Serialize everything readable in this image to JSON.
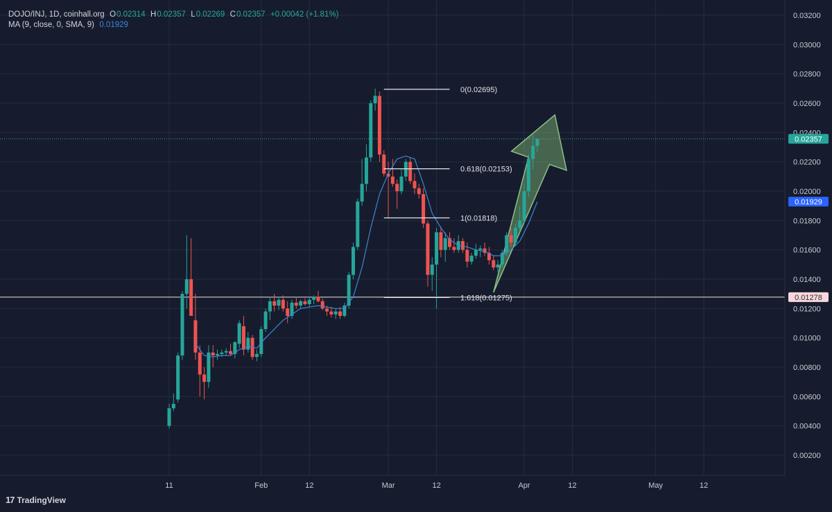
{
  "legend": {
    "symbol": "DOJO/INJ, 1D, coinhall.org",
    "o_label": "O",
    "o_value": "0.02314",
    "h_label": "H",
    "h_value": "0.02357",
    "l_label": "L",
    "l_value": "0.02269",
    "c_label": "C",
    "c_value": "0.02357",
    "change": "+0.00042 (+1.81%)",
    "ma_label": "MA (9, close, 0, SMA, 9)",
    "ma_value": "0.01929"
  },
  "branding": {
    "logo": "TradingView"
  },
  "chart_data": {
    "type": "candlestick",
    "y_ticks": [
      "0.03200",
      "0.03000",
      "0.02800",
      "0.02600",
      "0.02400",
      "0.02200",
      "0.02000",
      "0.01800",
      "0.01600",
      "0.01400",
      "0.01200",
      "0.01000",
      "0.00800",
      "0.00600",
      "0.00400",
      "0.00200"
    ],
    "x_ticks": [
      "11",
      "Feb",
      "12",
      "Mar",
      "12",
      "Apr",
      "12",
      "May",
      "12"
    ],
    "ylim": [
      0.0003,
      0.033
    ],
    "x_range": [
      "2024-01-01",
      "2024-05-31"
    ],
    "x_tick_dates": [
      "2024-01-11",
      "2024-02-01",
      "2024-02-12",
      "2024-03-01",
      "2024-03-12",
      "2024-04-01",
      "2024-04-12",
      "2024-05-01",
      "2024-05-12"
    ],
    "candles": [
      {
        "d": "2024-01-11",
        "o": 0.004,
        "h": 0.0055,
        "l": 0.0038,
        "c": 0.0052
      },
      {
        "d": "2024-01-12",
        "o": 0.0052,
        "h": 0.0062,
        "l": 0.005,
        "c": 0.0055
      },
      {
        "d": "2024-01-13",
        "o": 0.0058,
        "h": 0.009,
        "l": 0.0056,
        "c": 0.0088
      },
      {
        "d": "2024-01-14",
        "o": 0.0088,
        "h": 0.0132,
        "l": 0.0085,
        "c": 0.013
      },
      {
        "d": "2024-01-15",
        "o": 0.013,
        "h": 0.017,
        "l": 0.012,
        "c": 0.014
      },
      {
        "d": "2024-01-16",
        "o": 0.014,
        "h": 0.0168,
        "l": 0.0118,
        "c": 0.0115
      },
      {
        "d": "2024-01-17",
        "o": 0.0112,
        "h": 0.013,
        "l": 0.0085,
        "c": 0.009
      },
      {
        "d": "2024-01-18",
        "o": 0.009,
        "h": 0.0095,
        "l": 0.006,
        "c": 0.0075
      },
      {
        "d": "2024-01-19",
        "o": 0.0075,
        "h": 0.008,
        "l": 0.0058,
        "c": 0.007
      },
      {
        "d": "2024-01-20",
        "o": 0.007,
        "h": 0.0095,
        "l": 0.0066,
        "c": 0.009
      },
      {
        "d": "2024-01-21",
        "o": 0.009,
        "h": 0.0095,
        "l": 0.008,
        "c": 0.0088
      },
      {
        "d": "2024-01-22",
        "o": 0.0088,
        "h": 0.0092,
        "l": 0.0085,
        "c": 0.0089
      },
      {
        "d": "2024-01-23",
        "o": 0.0089,
        "h": 0.0092,
        "l": 0.0087,
        "c": 0.009
      },
      {
        "d": "2024-01-24",
        "o": 0.009,
        "h": 0.0093,
        "l": 0.0088,
        "c": 0.0091
      },
      {
        "d": "2024-01-25",
        "o": 0.0091,
        "h": 0.0096,
        "l": 0.0088,
        "c": 0.0089
      },
      {
        "d": "2024-01-26",
        "o": 0.0089,
        "h": 0.0098,
        "l": 0.0086,
        "c": 0.0097
      },
      {
        "d": "2024-01-27",
        "o": 0.0096,
        "h": 0.0112,
        "l": 0.0093,
        "c": 0.011
      },
      {
        "d": "2024-01-28",
        "o": 0.0108,
        "h": 0.0115,
        "l": 0.0088,
        "c": 0.0092
      },
      {
        "d": "2024-01-29",
        "o": 0.0092,
        "h": 0.0104,
        "l": 0.009,
        "c": 0.01
      },
      {
        "d": "2024-01-30",
        "o": 0.01,
        "h": 0.0102,
        "l": 0.0085,
        "c": 0.0087
      },
      {
        "d": "2024-01-31",
        "o": 0.0087,
        "h": 0.0092,
        "l": 0.0084,
        "c": 0.0089
      },
      {
        "d": "2024-02-01",
        "o": 0.0089,
        "h": 0.0108,
        "l": 0.0087,
        "c": 0.0106
      },
      {
        "d": "2024-02-02",
        "o": 0.0106,
        "h": 0.012,
        "l": 0.0104,
        "c": 0.0118
      },
      {
        "d": "2024-02-03",
        "o": 0.0118,
        "h": 0.0128,
        "l": 0.0112,
        "c": 0.0125
      },
      {
        "d": "2024-02-04",
        "o": 0.0125,
        "h": 0.013,
        "l": 0.0118,
        "c": 0.0122
      },
      {
        "d": "2024-02-05",
        "o": 0.0122,
        "h": 0.0128,
        "l": 0.0119,
        "c": 0.0126
      },
      {
        "d": "2024-02-06",
        "o": 0.0126,
        "h": 0.0129,
        "l": 0.0118,
        "c": 0.012
      },
      {
        "d": "2024-02-07",
        "o": 0.012,
        "h": 0.0125,
        "l": 0.011,
        "c": 0.0115
      },
      {
        "d": "2024-02-08",
        "o": 0.0115,
        "h": 0.0126,
        "l": 0.0113,
        "c": 0.0124
      },
      {
        "d": "2024-02-09",
        "o": 0.0124,
        "h": 0.0128,
        "l": 0.012,
        "c": 0.0122
      },
      {
        "d": "2024-02-10",
        "o": 0.0122,
        "h": 0.0126,
        "l": 0.012,
        "c": 0.0125
      },
      {
        "d": "2024-02-11",
        "o": 0.0125,
        "h": 0.0127,
        "l": 0.0122,
        "c": 0.0123
      },
      {
        "d": "2024-02-12",
        "o": 0.0123,
        "h": 0.0128,
        "l": 0.0121,
        "c": 0.0126
      },
      {
        "d": "2024-02-13",
        "o": 0.0126,
        "h": 0.0129,
        "l": 0.0123,
        "c": 0.0128
      },
      {
        "d": "2024-02-14",
        "o": 0.0128,
        "h": 0.0132,
        "l": 0.0124,
        "c": 0.0125
      },
      {
        "d": "2024-02-15",
        "o": 0.0125,
        "h": 0.0127,
        "l": 0.0119,
        "c": 0.012
      },
      {
        "d": "2024-02-16",
        "o": 0.012,
        "h": 0.0122,
        "l": 0.0115,
        "c": 0.0118
      },
      {
        "d": "2024-02-17",
        "o": 0.0118,
        "h": 0.0121,
        "l": 0.0114,
        "c": 0.0116
      },
      {
        "d": "2024-02-18",
        "o": 0.0116,
        "h": 0.012,
        "l": 0.0113,
        "c": 0.0118
      },
      {
        "d": "2024-02-19",
        "o": 0.0118,
        "h": 0.0121,
        "l": 0.0113,
        "c": 0.0115
      },
      {
        "d": "2024-02-20",
        "o": 0.0115,
        "h": 0.0124,
        "l": 0.0114,
        "c": 0.0122
      },
      {
        "d": "2024-02-21",
        "o": 0.0122,
        "h": 0.0145,
        "l": 0.012,
        "c": 0.0143
      },
      {
        "d": "2024-02-22",
        "o": 0.0143,
        "h": 0.0165,
        "l": 0.014,
        "c": 0.0162
      },
      {
        "d": "2024-02-23",
        "o": 0.0162,
        "h": 0.0195,
        "l": 0.016,
        "c": 0.0193
      },
      {
        "d": "2024-02-24",
        "o": 0.0193,
        "h": 0.0222,
        "l": 0.019,
        "c": 0.0205
      },
      {
        "d": "2024-02-25",
        "o": 0.0205,
        "h": 0.0232,
        "l": 0.02,
        "c": 0.0223
      },
      {
        "d": "2024-02-26",
        "o": 0.0223,
        "h": 0.0262,
        "l": 0.022,
        "c": 0.026
      },
      {
        "d": "2024-02-27",
        "o": 0.026,
        "h": 0.027,
        "l": 0.0255,
        "c": 0.0265
      },
      {
        "d": "2024-02-28",
        "o": 0.0265,
        "h": 0.0268,
        "l": 0.022,
        "c": 0.0225
      },
      {
        "d": "2024-02-29",
        "o": 0.0225,
        "h": 0.0228,
        "l": 0.021,
        "c": 0.0212
      },
      {
        "d": "2024-03-01",
        "o": 0.0212,
        "h": 0.022,
        "l": 0.0182,
        "c": 0.021
      },
      {
        "d": "2024-03-02",
        "o": 0.021,
        "h": 0.0222,
        "l": 0.0203,
        "c": 0.0205
      },
      {
        "d": "2024-03-03",
        "o": 0.0205,
        "h": 0.0208,
        "l": 0.0188,
        "c": 0.02
      },
      {
        "d": "2024-03-04",
        "o": 0.02,
        "h": 0.0215,
        "l": 0.0198,
        "c": 0.021
      },
      {
        "d": "2024-03-05",
        "o": 0.021,
        "h": 0.0222,
        "l": 0.0207,
        "c": 0.022
      },
      {
        "d": "2024-03-06",
        "o": 0.022,
        "h": 0.0223,
        "l": 0.0205,
        "c": 0.0207
      },
      {
        "d": "2024-03-07",
        "o": 0.0207,
        "h": 0.0212,
        "l": 0.0198,
        "c": 0.0202
      },
      {
        "d": "2024-03-08",
        "o": 0.0202,
        "h": 0.0205,
        "l": 0.0195,
        "c": 0.0198
      },
      {
        "d": "2024-03-09",
        "o": 0.0198,
        "h": 0.0202,
        "l": 0.0175,
        "c": 0.0178
      },
      {
        "d": "2024-03-10",
        "o": 0.0178,
        "h": 0.018,
        "l": 0.0135,
        "c": 0.0143
      },
      {
        "d": "2024-03-11",
        "o": 0.0143,
        "h": 0.0155,
        "l": 0.0132,
        "c": 0.015
      },
      {
        "d": "2024-03-12",
        "o": 0.015,
        "h": 0.0175,
        "l": 0.012,
        "c": 0.0172
      },
      {
        "d": "2024-03-13",
        "o": 0.0172,
        "h": 0.0176,
        "l": 0.0155,
        "c": 0.016
      },
      {
        "d": "2024-03-14",
        "o": 0.016,
        "h": 0.0172,
        "l": 0.0152,
        "c": 0.0168
      },
      {
        "d": "2024-03-15",
        "o": 0.0168,
        "h": 0.0172,
        "l": 0.016,
        "c": 0.0162
      },
      {
        "d": "2024-03-16",
        "o": 0.0162,
        "h": 0.0168,
        "l": 0.0158,
        "c": 0.016
      },
      {
        "d": "2024-03-17",
        "o": 0.016,
        "h": 0.017,
        "l": 0.0158,
        "c": 0.0166
      },
      {
        "d": "2024-03-18",
        "o": 0.0166,
        "h": 0.0168,
        "l": 0.0158,
        "c": 0.016
      },
      {
        "d": "2024-03-19",
        "o": 0.016,
        "h": 0.0165,
        "l": 0.0148,
        "c": 0.0152
      },
      {
        "d": "2024-03-20",
        "o": 0.0152,
        "h": 0.0158,
        "l": 0.015,
        "c": 0.0156
      },
      {
        "d": "2024-03-21",
        "o": 0.0156,
        "h": 0.0164,
        "l": 0.0154,
        "c": 0.016
      },
      {
        "d": "2024-03-22",
        "o": 0.016,
        "h": 0.0163,
        "l": 0.0155,
        "c": 0.0161
      },
      {
        "d": "2024-03-23",
        "o": 0.0161,
        "h": 0.0165,
        "l": 0.0156,
        "c": 0.0158
      },
      {
        "d": "2024-03-24",
        "o": 0.0158,
        "h": 0.0162,
        "l": 0.015,
        "c": 0.0153
      },
      {
        "d": "2024-03-25",
        "o": 0.0153,
        "h": 0.0156,
        "l": 0.0146,
        "c": 0.0148
      },
      {
        "d": "2024-03-26",
        "o": 0.0148,
        "h": 0.0153,
        "l": 0.0145,
        "c": 0.015
      },
      {
        "d": "2024-03-27",
        "o": 0.015,
        "h": 0.016,
        "l": 0.0148,
        "c": 0.0158
      },
      {
        "d": "2024-03-28",
        "o": 0.0158,
        "h": 0.0172,
        "l": 0.0156,
        "c": 0.017
      },
      {
        "d": "2024-03-29",
        "o": 0.017,
        "h": 0.0175,
        "l": 0.0162,
        "c": 0.0165
      },
      {
        "d": "2024-03-30",
        "o": 0.0165,
        "h": 0.0178,
        "l": 0.0163,
        "c": 0.0175
      },
      {
        "d": "2024-03-31",
        "o": 0.0175,
        "h": 0.019,
        "l": 0.0172,
        "c": 0.018
      },
      {
        "d": "2024-04-01",
        "o": 0.018,
        "h": 0.0205,
        "l": 0.0178,
        "c": 0.02
      },
      {
        "d": "2024-04-02",
        "o": 0.02,
        "h": 0.0225,
        "l": 0.0196,
        "c": 0.0222
      },
      {
        "d": "2024-04-03",
        "o": 0.0222,
        "h": 0.024,
        "l": 0.0215,
        "c": 0.0231
      },
      {
        "d": "2024-04-04",
        "o": 0.0231,
        "h": 0.02357,
        "l": 0.02269,
        "c": 0.02357
      }
    ],
    "ma_series": {
      "name": "MA (9, close, 0, SMA, 9)",
      "points": [
        [
          "2024-01-17",
          0.0096
        ],
        [
          "2024-01-19",
          0.0088
        ],
        [
          "2024-01-21",
          0.0087
        ],
        [
          "2024-01-23",
          0.0088
        ],
        [
          "2024-01-25",
          0.0088
        ],
        [
          "2024-01-27",
          0.0092
        ],
        [
          "2024-01-29",
          0.0094
        ],
        [
          "2024-01-31",
          0.0093
        ],
        [
          "2024-02-02",
          0.01
        ],
        [
          "2024-02-04",
          0.0106
        ],
        [
          "2024-02-06",
          0.0112
        ],
        [
          "2024-02-08",
          0.0116
        ],
        [
          "2024-02-10",
          0.012
        ],
        [
          "2024-02-12",
          0.0121
        ],
        [
          "2024-02-14",
          0.0122
        ],
        [
          "2024-02-16",
          0.0121
        ],
        [
          "2024-02-18",
          0.012
        ],
        [
          "2024-02-20",
          0.012
        ],
        [
          "2024-02-22",
          0.0128
        ],
        [
          "2024-02-24",
          0.0148
        ],
        [
          "2024-02-26",
          0.0175
        ],
        [
          "2024-02-28",
          0.0198
        ],
        [
          "2024-03-01",
          0.0212
        ],
        [
          "2024-03-03",
          0.0222
        ],
        [
          "2024-03-05",
          0.0224
        ],
        [
          "2024-03-07",
          0.0222
        ],
        [
          "2024-03-09",
          0.0205
        ],
        [
          "2024-03-11",
          0.0185
        ],
        [
          "2024-03-13",
          0.0175
        ],
        [
          "2024-03-15",
          0.0167
        ],
        [
          "2024-03-17",
          0.0163
        ],
        [
          "2024-03-19",
          0.0162
        ],
        [
          "2024-03-21",
          0.016
        ],
        [
          "2024-03-23",
          0.0159
        ],
        [
          "2024-03-25",
          0.0156
        ],
        [
          "2024-03-27",
          0.0156
        ],
        [
          "2024-03-29",
          0.016
        ],
        [
          "2024-03-31",
          0.0166
        ],
        [
          "2024-04-02",
          0.0178
        ],
        [
          "2024-04-04",
          0.01929
        ]
      ]
    },
    "fib_levels": [
      {
        "label": "0(0.02695)",
        "value": 0.02695
      },
      {
        "label": "0.618(0.02153)",
        "value": 0.02153
      },
      {
        "label": "1(0.01818)",
        "value": 0.01818
      },
      {
        "label": "1.618(0.01275)",
        "value": 0.01275
      }
    ],
    "horizontal_line": {
      "value": 0.01278,
      "label": "0.01278"
    },
    "last_price": {
      "value": 0.02357,
      "label": "0.02357"
    },
    "ma_price": {
      "value": 0.01929,
      "label": "0.01929"
    },
    "arrow": {
      "from": [
        "2024-03-25",
        0.0131
      ],
      "to": [
        "2024-04-08",
        0.0252
      ],
      "color": "#8fbf8a"
    },
    "colors": {
      "background": "#161c2d",
      "grid": "#262d3f",
      "up": "#26a69a",
      "down": "#ef5350",
      "ma": "#3d86d6",
      "text": "#c8ccd4"
    }
  }
}
